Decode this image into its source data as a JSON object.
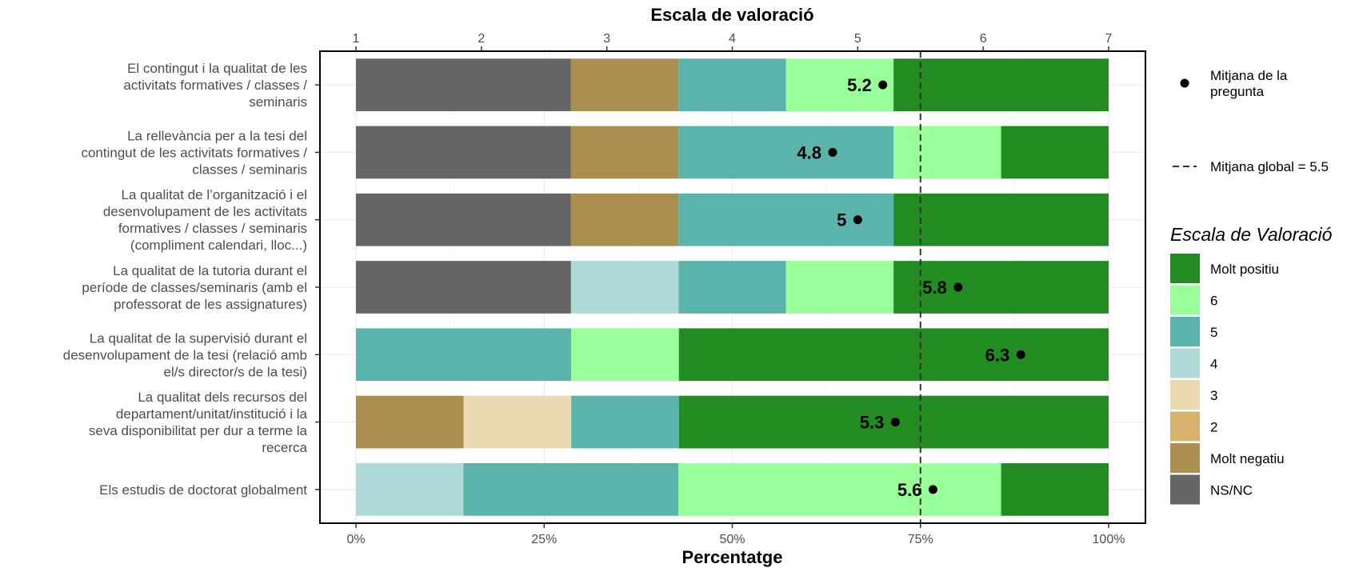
{
  "chart_data": {
    "type": "bar",
    "orientation": "horizontal",
    "stacked": true,
    "xlabel": "Percentatge",
    "x_tick_labels": [
      "0%",
      "25%",
      "50%",
      "75%",
      "100%"
    ],
    "secondary_axis": {
      "label": "Escala de valoració",
      "ticks": [
        "1",
        "2",
        "3",
        "4",
        "5",
        "6",
        "7"
      ],
      "range": [
        1,
        7
      ]
    },
    "xlim": [
      0,
      100
    ],
    "grid": true,
    "categories": [
      [
        "El contingut i la qualitat de les",
        "activitats formatives / classes /",
        "seminaris"
      ],
      [
        "La rellevància per a la tesi del",
        "contingut de les activitats formatives /",
        "classes / seminaris"
      ],
      [
        "La qualitat de l’organització i el",
        "desenvolupament de les activitats",
        "formatives / classes / seminaris",
        "(compliment calendari, lloc...)"
      ],
      [
        "La qualitat de la tutoria durant el",
        "període de classes/seminaris (amb el",
        "professorat de les assignatures)"
      ],
      [
        "La qualitat de la supervisió durant el",
        "desenvolupament de la tesi (relació amb",
        "el/s director/s de la tesi)"
      ],
      [
        "La qualitat dels recursos del",
        "departament/unitat/institució i la",
        "seva disponibilitat per dur a terme la",
        "recerca"
      ],
      [
        "Els estudis de doctorat globalment"
      ]
    ],
    "series": [
      {
        "name": "NS/NC",
        "color": "#666666",
        "values": [
          28.6,
          28.6,
          28.6,
          28.6,
          0,
          0,
          0
        ]
      },
      {
        "name": "Molt negatiu",
        "color": "#AB8E50",
        "values": [
          14.3,
          14.3,
          14.3,
          0,
          0,
          14.3,
          0
        ]
      },
      {
        "name": "2",
        "color": "#D6B26D",
        "values": [
          0,
          0,
          0,
          0,
          0,
          0,
          0
        ]
      },
      {
        "name": "3",
        "color": "#EBD9B1",
        "values": [
          0,
          0,
          0,
          0,
          0,
          14.3,
          0
        ]
      },
      {
        "name": "4",
        "color": "#ADD9D6",
        "values": [
          0,
          0,
          0,
          14.3,
          0,
          0,
          14.3
        ]
      },
      {
        "name": "5",
        "color": "#5BB4AC",
        "values": [
          14.3,
          28.6,
          28.6,
          14.3,
          28.6,
          14.3,
          28.6
        ]
      },
      {
        "name": "6",
        "color": "#99FF99",
        "values": [
          14.3,
          14.3,
          0,
          14.3,
          14.3,
          0,
          42.9
        ]
      },
      {
        "name": "Molt positiu",
        "color": "#228B22",
        "values": [
          28.6,
          14.3,
          28.6,
          28.6,
          57.1,
          57.1,
          14.3
        ]
      }
    ],
    "means": [
      5.2,
      4.8,
      5,
      5.8,
      6.3,
      5.3,
      5.6
    ],
    "mean_labels": [
      "5.2",
      "4.8",
      "5",
      "5.8",
      "6.3",
      "5.3",
      "5.6"
    ],
    "global_mean": 5.5,
    "legend": {
      "point_label": [
        "Mitjana de la",
        "pregunta"
      ],
      "line_label": "Mitjana global =  5.5",
      "title": "Escala de Valoració",
      "order": [
        "Molt positiu",
        "6",
        "5",
        "4",
        "3",
        "2",
        "Molt negatiu",
        "NS/NC"
      ],
      "placement": "right"
    }
  }
}
